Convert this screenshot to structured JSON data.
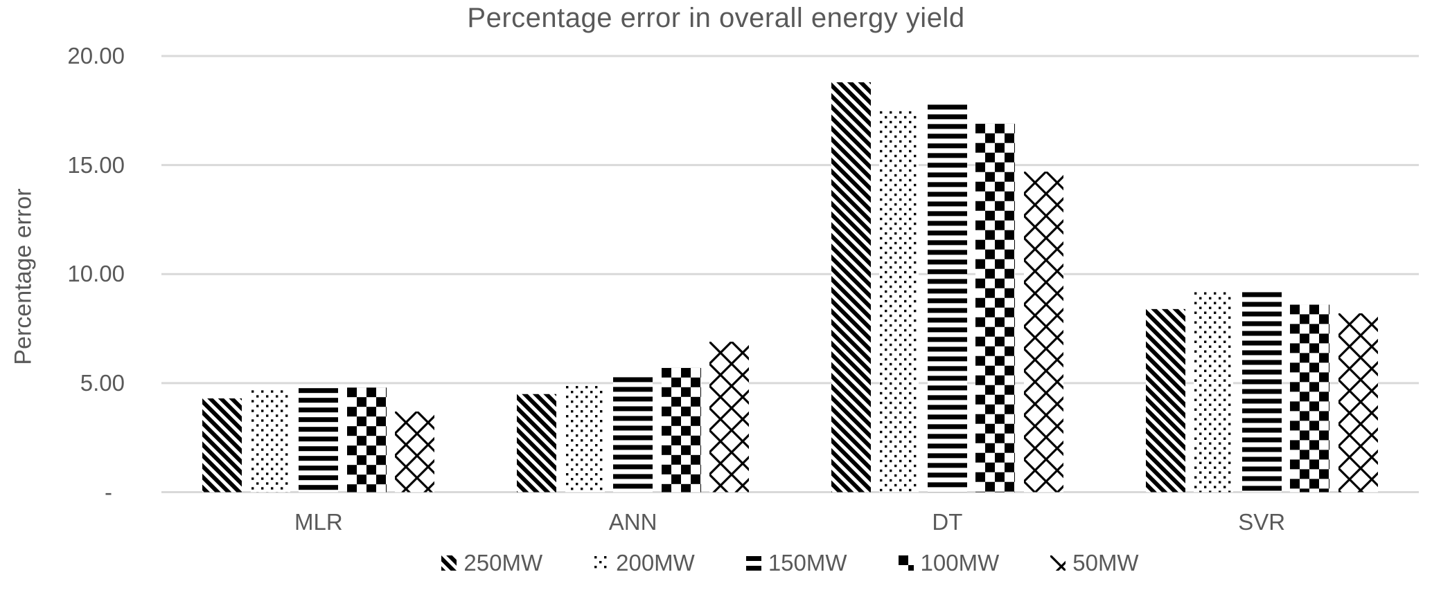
{
  "chart_data": {
    "type": "bar",
    "title": "Percentage error in overall energy yield",
    "ylabel": "Percentage error",
    "xlabel": "",
    "categories": [
      "MLR",
      "ANN",
      "DT",
      "SVR"
    ],
    "series": [
      {
        "name": "250MW",
        "pattern": "diagonal-stripes",
        "values": [
          4.3,
          4.5,
          18.8,
          8.4
        ]
      },
      {
        "name": "200MW",
        "pattern": "dots",
        "values": [
          4.7,
          4.9,
          17.5,
          9.2
        ]
      },
      {
        "name": "150MW",
        "pattern": "horizontal-stripes",
        "values": [
          4.8,
          5.3,
          17.8,
          9.2
        ]
      },
      {
        "name": "100MW",
        "pattern": "checkerboard",
        "values": [
          4.8,
          5.7,
          16.9,
          8.6
        ]
      },
      {
        "name": "50MW",
        "pattern": "diagonal-crosshatch",
        "values": [
          3.7,
          6.9,
          14.7,
          8.2
        ]
      }
    ],
    "ylim": [
      0,
      20
    ],
    "ytick_interval": 5,
    "ytick_labels": [
      "-",
      "5.00",
      "10.00",
      "15.00",
      "20.00"
    ],
    "grid": true,
    "legend_position": "bottom",
    "colors": {
      "bar_pattern": "#000000",
      "bar_background": "#ffffff",
      "text": "#595959",
      "gridline": "#d9d9d9",
      "axis_line": "#d9d9d9"
    }
  }
}
